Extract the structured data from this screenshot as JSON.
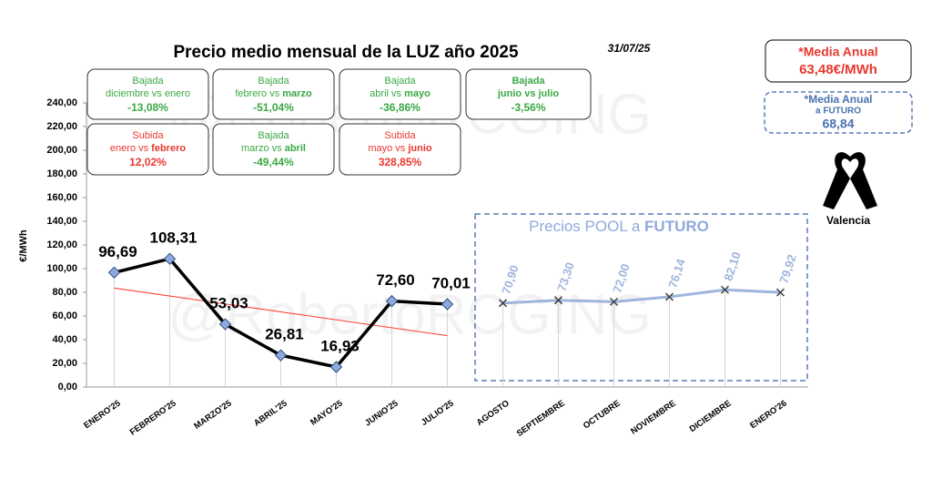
{
  "chart_data": {
    "type": "line",
    "title": "Precio medio mensual de la LUZ año 2025",
    "date": "31/07/25",
    "y_label": "€/MWh",
    "watermark": "@RobertoRCGING",
    "categories": [
      "ENERO'25",
      "FEBRERO'25",
      "MARZO'25",
      "ABRIL'25",
      "MAYO'25",
      "JUNIO'25",
      "JULIO'25",
      "AGOSTO",
      "SEPTIEMBRE",
      "OCTUBRE",
      "NOVIEMBRE",
      "DICIEMBRE",
      "ENERO'26"
    ],
    "series": [
      {
        "color": "#000000",
        "marker_color": "#8eaadb",
        "values": [
          96.69,
          108.31,
          53.03,
          26.81,
          16.93,
          72.6,
          70.01,
          null,
          null,
          null,
          null,
          null,
          null
        ],
        "value_labels": [
          "96,69",
          "108,31",
          "53,03",
          "26,81",
          "16,93",
          "72,60",
          "70,01",
          null,
          null,
          null,
          null,
          null,
          null
        ]
      },
      {
        "color": "#9fb5dc",
        "marker_color": "#404040",
        "values": [
          null,
          null,
          null,
          null,
          null,
          null,
          null,
          70.9,
          73.3,
          72.0,
          76.14,
          82.1,
          79.92
        ],
        "value_labels": [
          null,
          null,
          null,
          null,
          null,
          null,
          null,
          "70,90",
          "73,30",
          "72,00",
          "76,14",
          "82,10",
          "79,92"
        ]
      }
    ],
    "trendline": true,
    "trendline_color": "#ff3b30",
    "ylim": [
      0,
      240
    ],
    "yticks": [
      {
        "value": 0,
        "label": "0,00"
      },
      {
        "value": 20,
        "label": "20,00"
      },
      {
        "value": 40,
        "label": "40,00"
      },
      {
        "value": 60,
        "label": "60,00"
      },
      {
        "value": 80,
        "label": "80,00"
      },
      {
        "value": 100,
        "label": "100,00"
      },
      {
        "value": 120,
        "label": "120,00"
      },
      {
        "value": 140,
        "label": "140,00"
      },
      {
        "value": 160,
        "label": "160,00"
      },
      {
        "value": 180,
        "label": "180,00"
      },
      {
        "value": 200,
        "label": "200,00"
      },
      {
        "value": 220,
        "label": "220,00"
      },
      {
        "value": 240,
        "label": "240,00"
      }
    ],
    "future_box": {
      "parts": [
        {
          "t": "Precios POOL a "
        },
        {
          "t": "FUTURO",
          "bold": true
        }
      ]
    },
    "boxes": [
      {
        "title": "Bajada",
        "parts": [
          {
            "t": "diciembre vs enero"
          }
        ],
        "value": "-13,08%",
        "color": "#3aa845"
      },
      {
        "title": "Bajada",
        "parts": [
          {
            "t": "febrero vs "
          },
          {
            "t": "marzo",
            "bold": true
          }
        ],
        "value": "-51,04%",
        "color": "#3aa845"
      },
      {
        "title": "Bajada",
        "parts": [
          {
            "t": "abril vs "
          },
          {
            "t": "mayo",
            "bold": true
          }
        ],
        "value": "-36,86%",
        "color": "#3aa845"
      },
      {
        "title": "Bajada",
        "title_bold": true,
        "parts": [
          {
            "t": "junio vs julio",
            "bold": true
          }
        ],
        "value": "-3,56%",
        "color": "#3aa845"
      },
      {
        "title": "Subida",
        "parts": [
          {
            "t": "enero vs "
          },
          {
            "t": "febrero",
            "bold": true
          }
        ],
        "value": "12,02%",
        "color": "#e8382f"
      },
      {
        "title": "Bajada",
        "parts": [
          {
            "t": "marzo vs "
          },
          {
            "t": "abril",
            "bold": true
          }
        ],
        "value": "-49,44%",
        "color": "#3aa845"
      },
      {
        "title": "Subida",
        "parts": [
          {
            "t": "mayo vs "
          },
          {
            "t": "junio",
            "bold": true
          }
        ],
        "value": "328,85%",
        "color": "#e8382f"
      }
    ],
    "media_anual": {
      "label": "*Media Anual",
      "value": "63,48€/MWh"
    },
    "media_futuro": {
      "label": [
        "*Media Anual",
        "a FUTURO"
      ],
      "value": "68,84"
    },
    "city": "Valencia"
  }
}
